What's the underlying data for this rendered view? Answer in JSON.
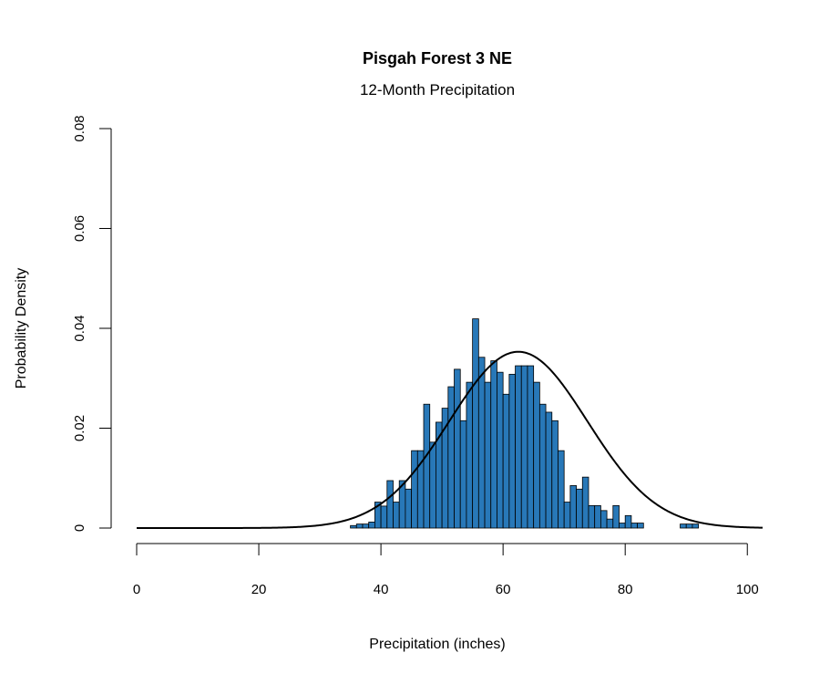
{
  "chart_data": {
    "type": "bar",
    "title": "Pisgah Forest 3 NE",
    "subtitle": "12-Month Precipitation",
    "xlabel": "Precipitation (inches)",
    "ylabel": "Probability Density",
    "xlim": [
      0,
      102.5
    ],
    "ylim": [
      0,
      0.08
    ],
    "x_ticks": [
      0,
      20,
      40,
      60,
      80,
      100
    ],
    "x_tick_labels": [
      "0",
      "20",
      "40",
      "60",
      "80",
      "100"
    ],
    "y_ticks": [
      0,
      0.02,
      0.04,
      0.06,
      0.08
    ],
    "y_tick_labels": [
      "0",
      "0.02",
      "0.04",
      "0.06",
      "0.08"
    ],
    "bin_width": 1,
    "bin_start": 35,
    "values": [
      0.0005,
      0.0008,
      0.0008,
      0.0012,
      0.0052,
      0.0044,
      0.0095,
      0.0052,
      0.0095,
      0.0078,
      0.0155,
      0.0155,
      0.0248,
      0.0172,
      0.0212,
      0.024,
      0.0283,
      0.0318,
      0.0215,
      0.0292,
      0.0419,
      0.0342,
      0.0292,
      0.0335,
      0.0312,
      0.0268,
      0.0308,
      0.0325,
      0.0325,
      0.0325,
      0.0292,
      0.0248,
      0.0232,
      0.0215,
      0.0155,
      0.0052,
      0.0085,
      0.0078,
      0.0102,
      0.0045,
      0.0045,
      0.0035,
      0.0018,
      0.0045,
      0.001,
      0.0025,
      0.001,
      0.001,
      0,
      0,
      0,
      0,
      0,
      0,
      0.0008,
      0.0008,
      0.0008
    ],
    "bar_color": "#2878b8",
    "curve": {
      "type": "normal",
      "mean": 62.5,
      "sd": 11.3,
      "color": "#000000"
    },
    "grid": false
  }
}
